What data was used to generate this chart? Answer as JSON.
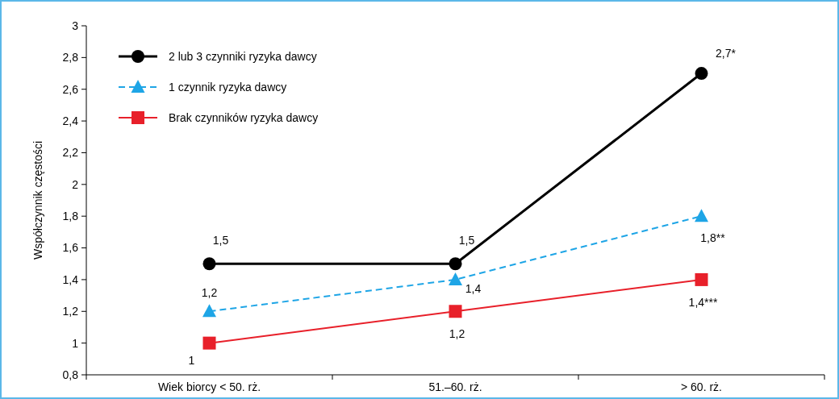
{
  "chart_data": {
    "type": "line",
    "ylabel": "Współczynnik częstości",
    "categories": [
      "Wiek biorcy < 50. rż.",
      "51.–60. rż.",
      "> 60. rż."
    ],
    "series": [
      {
        "name": "2 lub 3 czynniki ryzyka dawcy",
        "color": "#000000",
        "marker": "circle",
        "line_style": "solid",
        "values": [
          1.5,
          1.5,
          2.7
        ],
        "value_labels": [
          "1,5",
          "1,5",
          "2,7*"
        ]
      },
      {
        "name": "1 czynnik ryzyka dawcy",
        "color": "#1ea5e6",
        "marker": "triangle",
        "line_style": "dashed",
        "values": [
          1.2,
          1.4,
          1.8
        ],
        "value_labels": [
          "1,2",
          "1,4",
          "1,8**"
        ]
      },
      {
        "name": "Brak czynników ryzyka dawcy",
        "color": "#e8202a",
        "marker": "square",
        "line_style": "solid",
        "values": [
          1,
          1.2,
          1.4
        ],
        "value_labels": [
          "1",
          "1,2",
          "1,4***"
        ]
      }
    ],
    "ylim": [
      0.8,
      3
    ],
    "yticks": [
      {
        "value": 0.8,
        "label": "0,8"
      },
      1,
      {
        "value": 1.2,
        "label": "1,2"
      },
      {
        "value": 1.4,
        "label": "1,4"
      },
      {
        "value": 1.6,
        "label": "1,6"
      },
      {
        "value": 1.8,
        "label": "1,8"
      },
      2,
      {
        "value": 2.2,
        "label": "2,2"
      },
      {
        "value": 2.4,
        "label": "2,4"
      },
      {
        "value": 2.6,
        "label": "2,6"
      },
      {
        "value": 2.8,
        "label": "2,8"
      },
      3
    ],
    "legend": "top left",
    "grid": false
  }
}
